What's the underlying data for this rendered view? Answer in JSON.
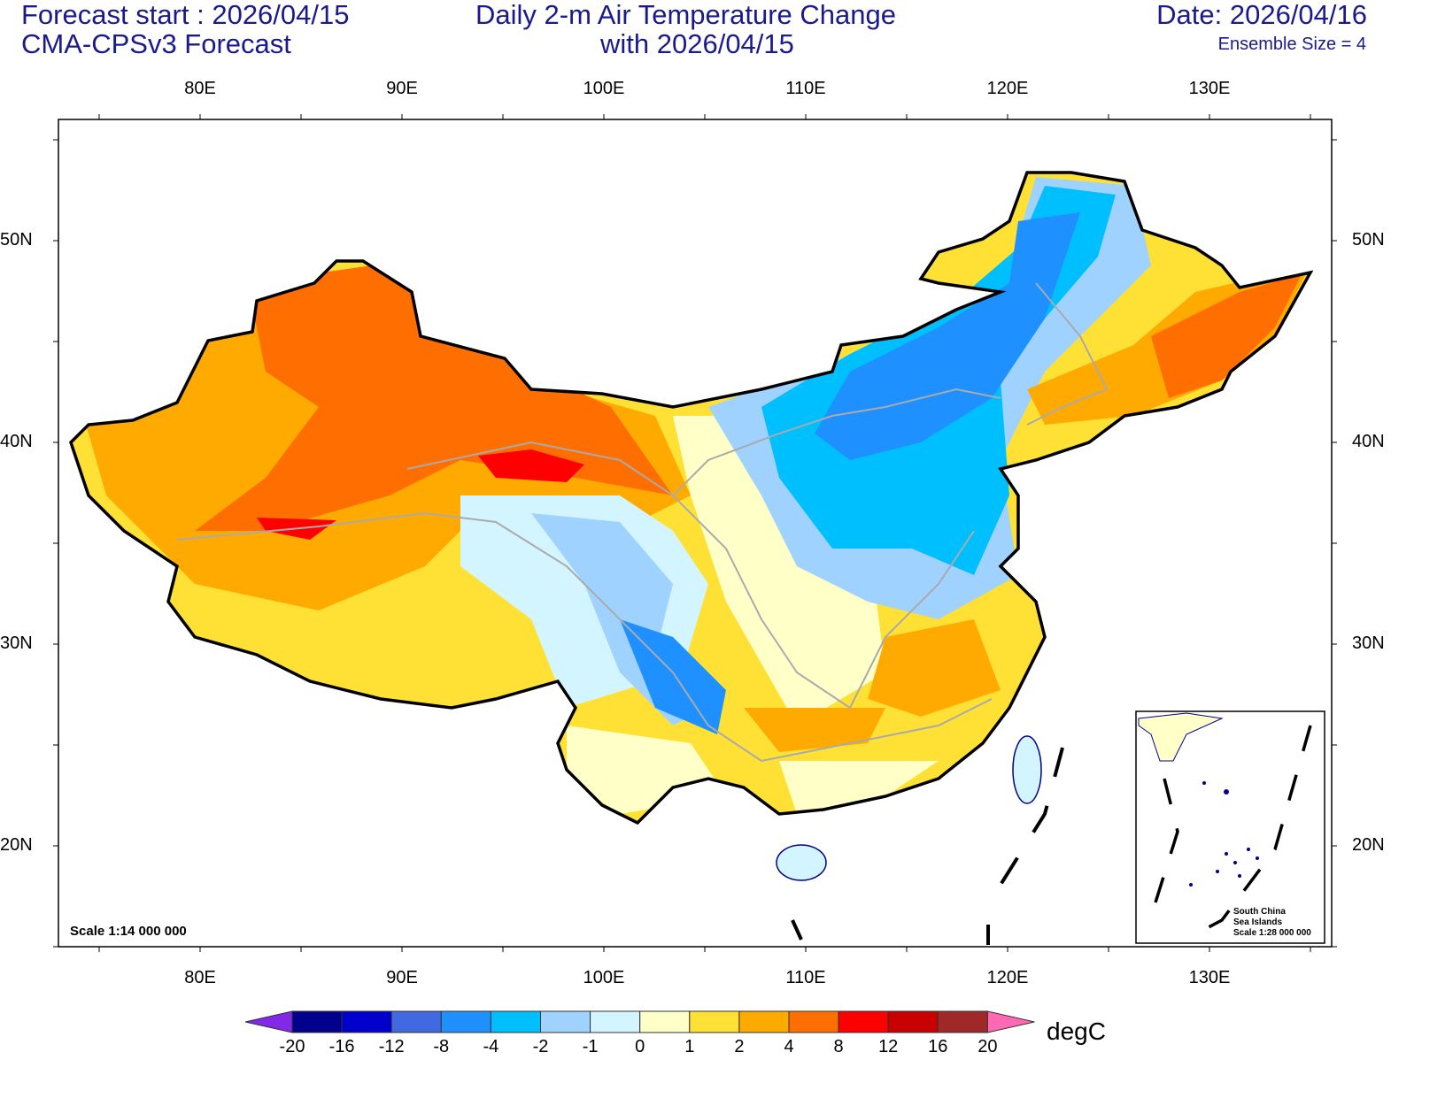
{
  "header": {
    "forecast_start": "Forecast start : 2026/04/15",
    "model": "CMA-CPSv3 Forecast",
    "title_line1": "Daily 2-m Air Temperature Change",
    "title_line2": "with 2026/04/15",
    "date": "Date: 2026/04/16",
    "ensemble": "Ensemble Size = 4"
  },
  "map": {
    "lon_labels": [
      "80E",
      "90E",
      "100E",
      "110E",
      "120E",
      "130E"
    ],
    "lat_labels": [
      "50N",
      "40N",
      "30N",
      "20N"
    ],
    "scale": "Scale 1:14 000 000",
    "inset": {
      "line1": "South China",
      "line2": "Sea Islands",
      "line3": "Scale 1:28 000 000"
    }
  },
  "colorbar": {
    "unit": "degC",
    "labels": [
      "-20",
      "-16",
      "-12",
      "-8",
      "-4",
      "-2",
      "-1",
      "0",
      "1",
      "2",
      "4",
      "8",
      "12",
      "16",
      "20"
    ],
    "colors": [
      "#00008c",
      "#0000cd",
      "#4169e1",
      "#1e90ff",
      "#00bfff",
      "#a0d2ff",
      "#d2f5ff",
      "#ffffc8",
      "#ffe135",
      "#ffaa00",
      "#ff6e00",
      "#ff0000",
      "#c80000",
      "#a02828"
    ],
    "under_color": "#8228e6",
    "over_color": "#ff69b4"
  }
}
